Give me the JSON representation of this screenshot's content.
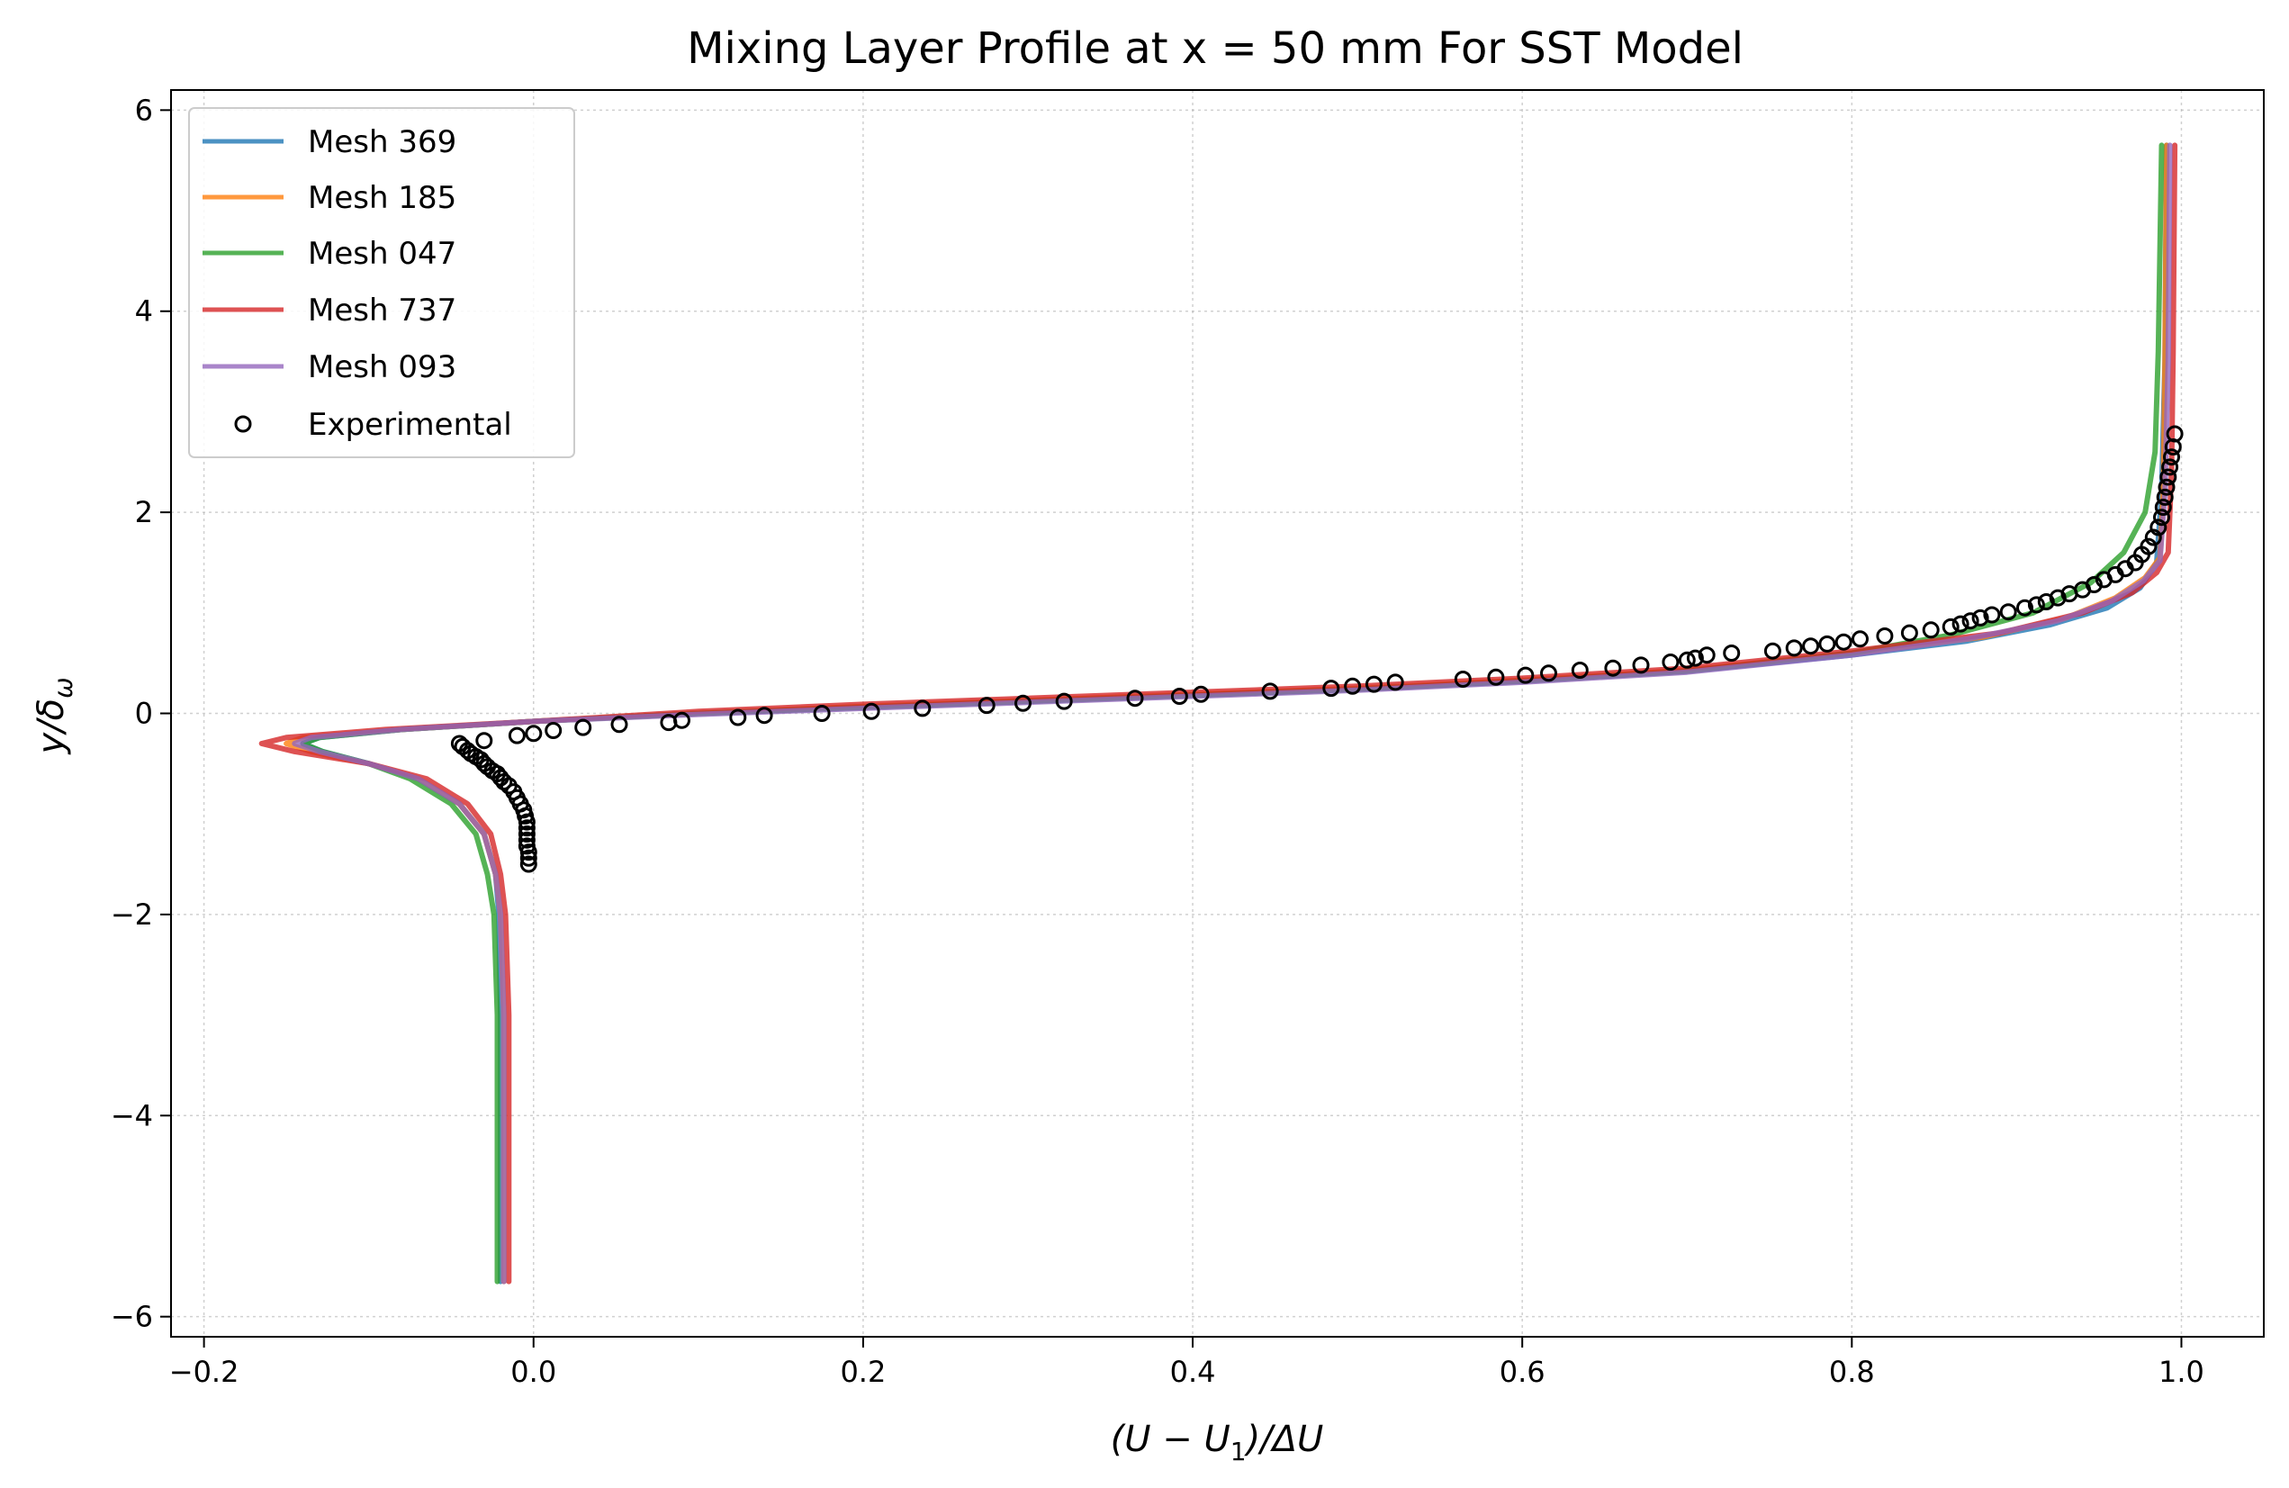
{
  "chart_data": {
    "type": "line",
    "title": "Mixing Layer Profile at x = 50 mm For SST Model",
    "xlabel": "(U − U",
    "xlabel_sub": "1",
    "xlabel_tail": ")/ΔU",
    "ylabel": "y/δ",
    "ylabel_sub": "ω",
    "xlim": [
      -0.22,
      1.05
    ],
    "ylim": [
      -6.2,
      6.2
    ],
    "xticks": [
      -0.2,
      0.0,
      0.2,
      0.4,
      0.6,
      0.8,
      1.0
    ],
    "xtick_labels": [
      "−0.2",
      "0.0",
      "0.2",
      "0.4",
      "0.6",
      "0.8",
      "1.0"
    ],
    "yticks": [
      -6,
      -4,
      -2,
      0,
      2,
      4,
      6
    ],
    "ytick_labels": [
      "−6",
      "−4",
      "−2",
      "0",
      "2",
      "4",
      "6"
    ],
    "grid": true,
    "legend_position": "top-left",
    "series": [
      {
        "name": "Mesh 369",
        "color": "#1f77b4",
        "x": [
          -0.02,
          -0.02,
          -0.021,
          -0.023,
          -0.03,
          -0.045,
          -0.07,
          -0.1,
          -0.128,
          -0.14,
          -0.13,
          -0.08,
          0.0,
          0.1,
          0.2,
          0.3,
          0.4,
          0.5,
          0.6,
          0.7,
          0.8,
          0.87,
          0.92,
          0.955,
          0.975,
          0.985,
          0.988,
          0.99,
          0.991
        ],
        "y": [
          -5.65,
          -3.0,
          -2.0,
          -1.6,
          -1.2,
          -0.9,
          -0.65,
          -0.5,
          -0.38,
          -0.3,
          -0.24,
          -0.16,
          -0.08,
          0.0,
          0.06,
          0.12,
          0.18,
          0.24,
          0.32,
          0.42,
          0.58,
          0.72,
          0.88,
          1.05,
          1.25,
          1.5,
          2.2,
          3.5,
          5.65
        ]
      },
      {
        "name": "Mesh 185",
        "color": "#ff7f0e",
        "x": [
          -0.018,
          -0.018,
          -0.02,
          -0.023,
          -0.03,
          -0.045,
          -0.07,
          -0.1,
          -0.135,
          -0.15,
          -0.14,
          -0.08,
          0.0,
          0.1,
          0.2,
          0.3,
          0.4,
          0.5,
          0.6,
          0.7,
          0.8,
          0.88,
          0.93,
          0.96,
          0.978,
          0.987,
          0.989,
          0.99,
          0.991
        ],
        "y": [
          -5.65,
          -3.0,
          -2.0,
          -1.6,
          -1.2,
          -0.9,
          -0.65,
          -0.5,
          -0.38,
          -0.3,
          -0.24,
          -0.16,
          -0.08,
          0.0,
          0.07,
          0.13,
          0.19,
          0.25,
          0.33,
          0.43,
          0.6,
          0.76,
          0.95,
          1.15,
          1.35,
          1.55,
          2.2,
          3.5,
          5.65
        ]
      },
      {
        "name": "Mesh 047",
        "color": "#2ca02c",
        "x": [
          -0.022,
          -0.022,
          -0.024,
          -0.028,
          -0.035,
          -0.05,
          -0.075,
          -0.1,
          -0.128,
          -0.14,
          -0.13,
          -0.08,
          0.0,
          0.1,
          0.2,
          0.3,
          0.4,
          0.5,
          0.6,
          0.7,
          0.8,
          0.86,
          0.91,
          0.945,
          0.965,
          0.978,
          0.984,
          0.986,
          0.988
        ],
        "y": [
          -5.65,
          -3.0,
          -2.0,
          -1.6,
          -1.2,
          -0.9,
          -0.65,
          -0.5,
          -0.38,
          -0.3,
          -0.24,
          -0.16,
          -0.08,
          0.0,
          0.06,
          0.12,
          0.18,
          0.24,
          0.32,
          0.42,
          0.6,
          0.78,
          1.0,
          1.3,
          1.6,
          2.0,
          2.6,
          3.6,
          5.65
        ]
      },
      {
        "name": "Mesh 737",
        "color": "#d62728",
        "x": [
          -0.015,
          -0.015,
          -0.017,
          -0.02,
          -0.026,
          -0.04,
          -0.065,
          -0.1,
          -0.145,
          -0.165,
          -0.15,
          -0.09,
          0.0,
          0.1,
          0.2,
          0.3,
          0.4,
          0.5,
          0.6,
          0.7,
          0.8,
          0.89,
          0.94,
          0.97,
          0.985,
          0.992,
          0.994,
          0.995,
          0.996
        ],
        "y": [
          -5.65,
          -3.0,
          -2.0,
          -1.6,
          -1.2,
          -0.9,
          -0.65,
          -0.5,
          -0.38,
          -0.3,
          -0.24,
          -0.16,
          -0.08,
          0.02,
          0.09,
          0.15,
          0.21,
          0.27,
          0.35,
          0.45,
          0.62,
          0.8,
          1.0,
          1.2,
          1.4,
          1.6,
          2.4,
          3.6,
          5.65
        ]
      },
      {
        "name": "Mesh 093",
        "color": "#9467bd",
        "x": [
          -0.018,
          -0.018,
          -0.02,
          -0.023,
          -0.03,
          -0.045,
          -0.07,
          -0.1,
          -0.13,
          -0.145,
          -0.135,
          -0.08,
          0.0,
          0.1,
          0.2,
          0.3,
          0.4,
          0.5,
          0.6,
          0.7,
          0.8,
          0.87,
          0.925,
          0.958,
          0.977,
          0.987,
          0.99,
          0.992,
          0.993
        ],
        "y": [
          -5.65,
          -3.0,
          -2.0,
          -1.6,
          -1.2,
          -0.9,
          -0.65,
          -0.5,
          -0.38,
          -0.3,
          -0.24,
          -0.16,
          -0.08,
          -0.01,
          0.05,
          0.11,
          0.17,
          0.23,
          0.31,
          0.41,
          0.58,
          0.74,
          0.92,
          1.12,
          1.32,
          1.52,
          2.2,
          3.5,
          5.65
        ]
      }
    ],
    "experimental": {
      "name": "Experimental",
      "x": [
        -0.045,
        -0.043,
        -0.04,
        -0.038,
        -0.035,
        -0.032,
        -0.03,
        -0.028,
        -0.025,
        -0.022,
        -0.02,
        -0.018,
        -0.015,
        -0.012,
        -0.01,
        -0.008,
        -0.006,
        -0.005,
        -0.004,
        -0.004,
        -0.004,
        -0.004,
        -0.004,
        -0.003,
        -0.003,
        -0.003,
        -0.03,
        -0.01,
        0.0,
        0.012,
        0.03,
        0.052,
        0.082,
        0.09,
        0.124,
        0.14,
        0.175,
        0.205,
        0.236,
        0.275,
        0.297,
        0.322,
        0.365,
        0.392,
        0.405,
        0.447,
        0.484,
        0.497,
        0.51,
        0.523,
        0.564,
        0.584,
        0.602,
        0.616,
        0.635,
        0.655,
        0.672,
        0.69,
        0.7,
        0.705,
        0.712,
        0.727,
        0.752,
        0.765,
        0.775,
        0.785,
        0.795,
        0.805,
        0.82,
        0.835,
        0.848,
        0.86,
        0.866,
        0.872,
        0.878,
        0.885,
        0.895,
        0.905,
        0.912,
        0.918,
        0.925,
        0.932,
        0.94,
        0.947,
        0.953,
        0.96,
        0.966,
        0.972,
        0.976,
        0.98,
        0.983,
        0.986,
        0.988,
        0.989,
        0.99,
        0.991,
        0.992,
        0.993,
        0.994,
        0.995,
        0.996
      ],
      "y": [
        -0.3,
        -0.33,
        -0.37,
        -0.4,
        -0.43,
        -0.46,
        -0.5,
        -0.53,
        -0.57,
        -0.6,
        -0.64,
        -0.68,
        -0.72,
        -0.78,
        -0.84,
        -0.9,
        -0.96,
        -1.02,
        -1.08,
        -1.14,
        -1.2,
        -1.26,
        -1.32,
        -1.38,
        -1.44,
        -1.5,
        -0.27,
        -0.22,
        -0.2,
        -0.17,
        -0.14,
        -0.11,
        -0.09,
        -0.07,
        -0.04,
        -0.02,
        0.0,
        0.02,
        0.05,
        0.08,
        0.1,
        0.12,
        0.15,
        0.17,
        0.19,
        0.22,
        0.25,
        0.27,
        0.29,
        0.31,
        0.34,
        0.36,
        0.38,
        0.4,
        0.43,
        0.45,
        0.48,
        0.51,
        0.53,
        0.55,
        0.58,
        0.6,
        0.62,
        0.65,
        0.67,
        0.69,
        0.71,
        0.74,
        0.77,
        0.8,
        0.83,
        0.86,
        0.89,
        0.92,
        0.95,
        0.98,
        1.01,
        1.05,
        1.08,
        1.11,
        1.15,
        1.19,
        1.23,
        1.28,
        1.33,
        1.38,
        1.44,
        1.5,
        1.58,
        1.66,
        1.75,
        1.85,
        1.95,
        2.05,
        2.15,
        2.25,
        2.35,
        2.45,
        2.55,
        2.65,
        2.78
      ]
    }
  }
}
